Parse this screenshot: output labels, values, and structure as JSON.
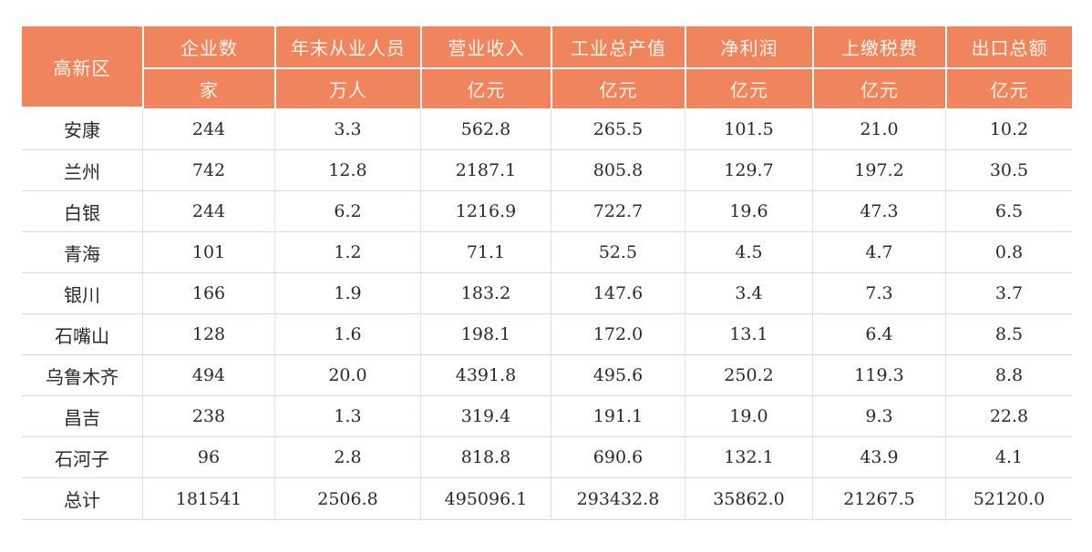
{
  "table": {
    "corner_label": "高新区",
    "headers": [
      "企业数",
      "年末从业人员",
      "营业收入",
      "工业总产值",
      "净利润",
      "上缴税费",
      "出口总额"
    ],
    "units": [
      "家",
      "万人",
      "亿元",
      "亿元",
      "亿元",
      "亿元",
      "亿元"
    ],
    "rows": [
      {
        "name": "安康",
        "values": [
          "244",
          "3.3",
          "562.8",
          "265.5",
          "101.5",
          "21.0",
          "10.2"
        ]
      },
      {
        "name": "兰州",
        "values": [
          "742",
          "12.8",
          "2187.1",
          "805.8",
          "129.7",
          "197.2",
          "30.5"
        ]
      },
      {
        "name": "白银",
        "values": [
          "244",
          "6.2",
          "1216.9",
          "722.7",
          "19.6",
          "47.3",
          "6.5"
        ]
      },
      {
        "name": "青海",
        "values": [
          "101",
          "1.2",
          "71.1",
          "52.5",
          "4.5",
          "4.7",
          "0.8"
        ]
      },
      {
        "name": "银川",
        "values": [
          "166",
          "1.9",
          "183.2",
          "147.6",
          "3.4",
          "7.3",
          "3.7"
        ]
      },
      {
        "name": "石嘴山",
        "values": [
          "128",
          "1.6",
          "198.1",
          "172.0",
          "13.1",
          "6.4",
          "8.5"
        ]
      },
      {
        "name": "乌鲁木齐",
        "values": [
          "494",
          "20.0",
          "4391.8",
          "495.6",
          "250.2",
          "119.3",
          "8.8"
        ]
      },
      {
        "name": "昌吉",
        "values": [
          "238",
          "1.3",
          "319.4",
          "191.1",
          "19.0",
          "9.3",
          "22.8"
        ]
      },
      {
        "name": "石河子",
        "values": [
          "96",
          "2.8",
          "818.8",
          "690.6",
          "132.1",
          "43.9",
          "4.1"
        ]
      },
      {
        "name": "总计",
        "values": [
          "181541",
          "2506.8",
          "495096.1",
          "293432.8",
          "35862.0",
          "21267.5",
          "52120.0"
        ]
      }
    ]
  }
}
